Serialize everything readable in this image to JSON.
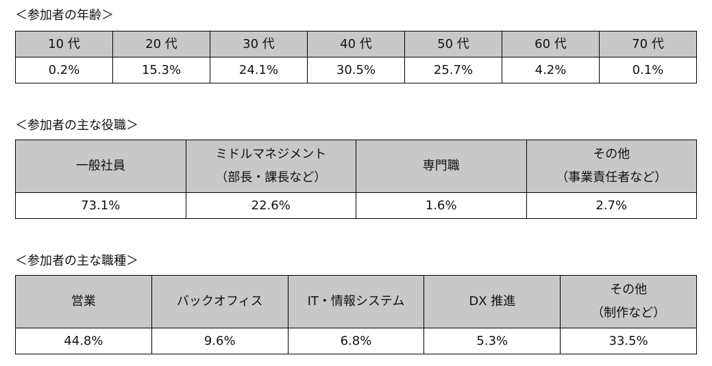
{
  "age": {
    "title": "＜参加者の年齢＞",
    "headers": [
      "10 代",
      "20 代",
      "30 代",
      "40 代",
      "50 代",
      "60 代",
      "70 代"
    ],
    "values": [
      "0.2%",
      "15.3%",
      "24.1%",
      "30.5%",
      "25.7%",
      "4.2%",
      "0.1%"
    ]
  },
  "role": {
    "title": "＜参加者の主な役職＞",
    "headers": [
      {
        "line1": "一般社員",
        "line2": ""
      },
      {
        "line1": "ミドルマネジメント",
        "line2": "（部長・課長など）"
      },
      {
        "line1": "専門職",
        "line2": ""
      },
      {
        "line1": "その他",
        "line2": "（事業責任者など）"
      }
    ],
    "values": [
      "73.1%",
      "22.6%",
      "1.6%",
      "2.7%"
    ]
  },
  "job": {
    "title": "＜参加者の主な職種＞",
    "headers": [
      {
        "line1": "営業",
        "line2": ""
      },
      {
        "line1": "バックオフィス",
        "line2": ""
      },
      {
        "line1": "IT・情報システム",
        "line2": ""
      },
      {
        "line1": "DX 推進",
        "line2": ""
      },
      {
        "line1": "その他",
        "line2": "（制作など）"
      }
    ],
    "values": [
      "44.8%",
      "9.6%",
      "6.8%",
      "5.3%",
      "33.5%"
    ]
  }
}
